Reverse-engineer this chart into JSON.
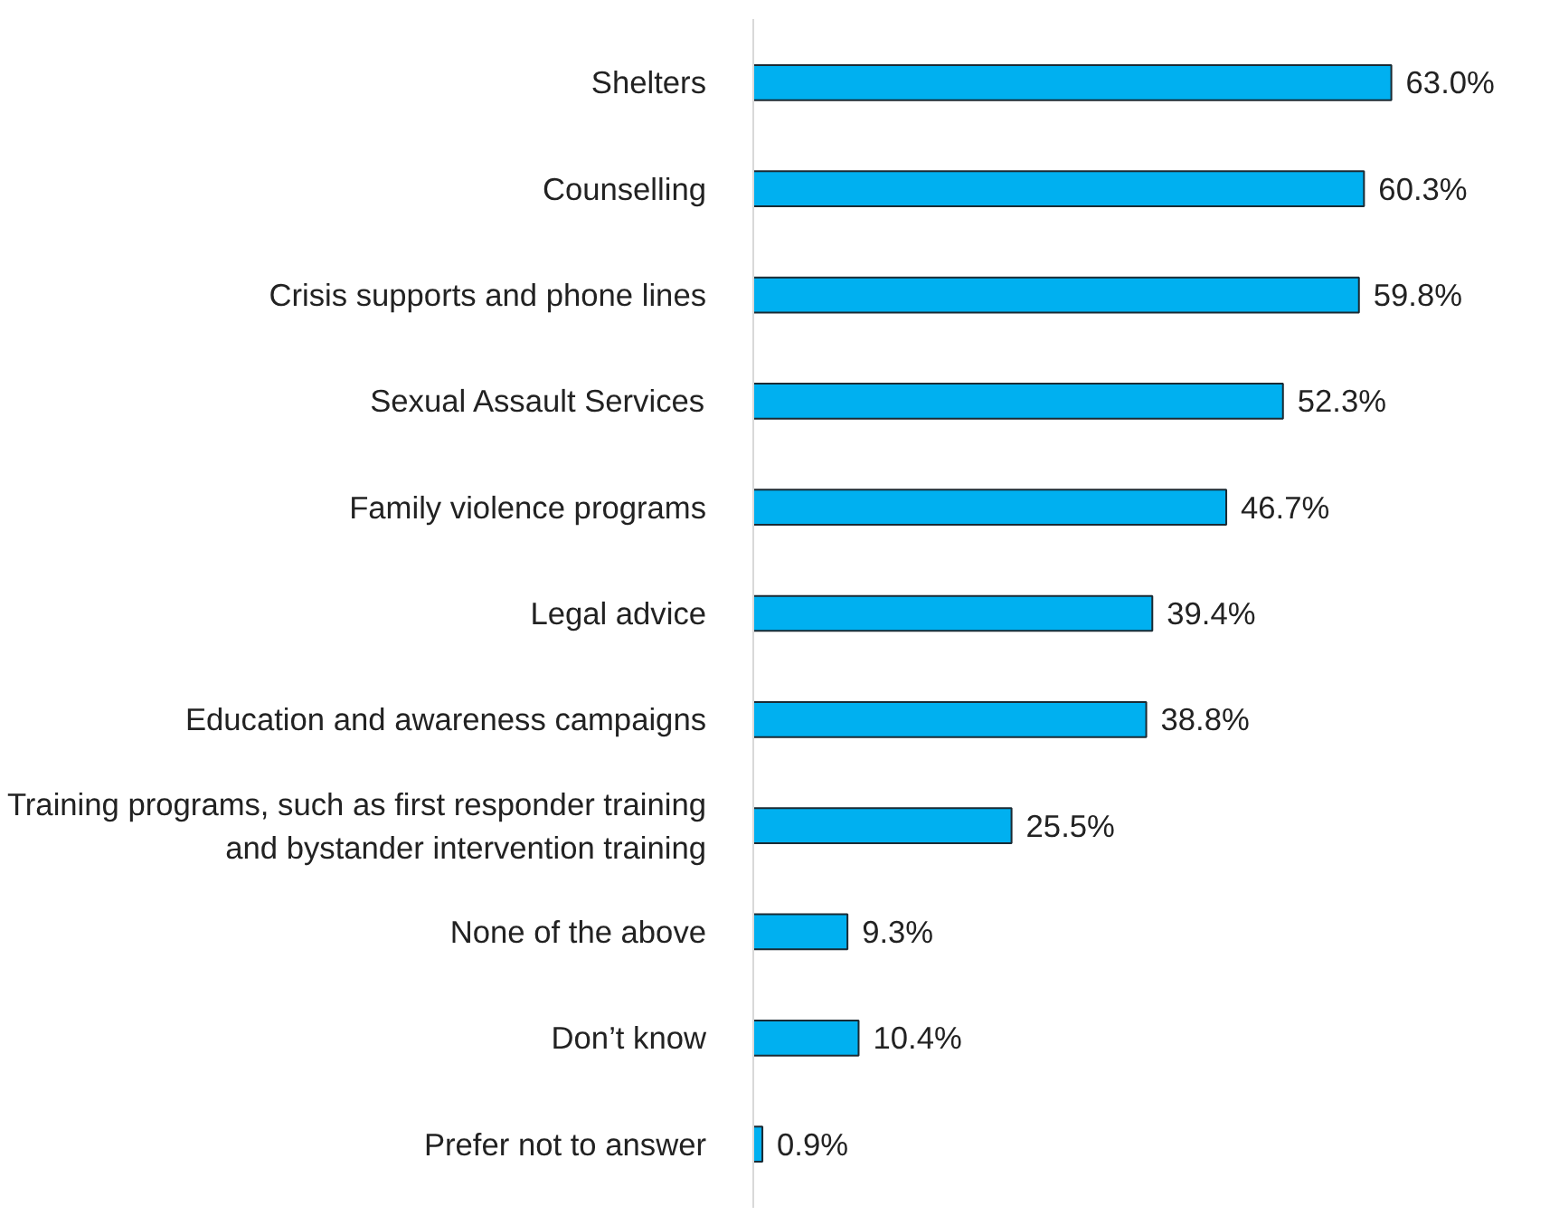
{
  "chart_data": {
    "type": "bar",
    "orientation": "horizontal",
    "categories": [
      "Shelters",
      "Counselling",
      "Crisis supports and phone lines",
      "Sexual Assault Services",
      "Family violence programs",
      "Legal advice",
      "Education and awareness campaigns",
      "Training programs, such as first responder training and bystander intervention training",
      "None of the above",
      "Don’t know",
      "Prefer not to answer"
    ],
    "values": [
      63.0,
      60.3,
      59.8,
      52.3,
      46.7,
      39.4,
      38.8,
      25.5,
      9.3,
      10.4,
      0.9
    ],
    "value_labels": [
      "63.0%",
      "60.3%",
      "59.8%",
      "52.3%",
      "46.7%",
      "39.4%",
      "38.8%",
      "25.5%",
      "9.3%",
      "10.4%",
      "0.9%"
    ],
    "color": "#00b0f0"
  }
}
